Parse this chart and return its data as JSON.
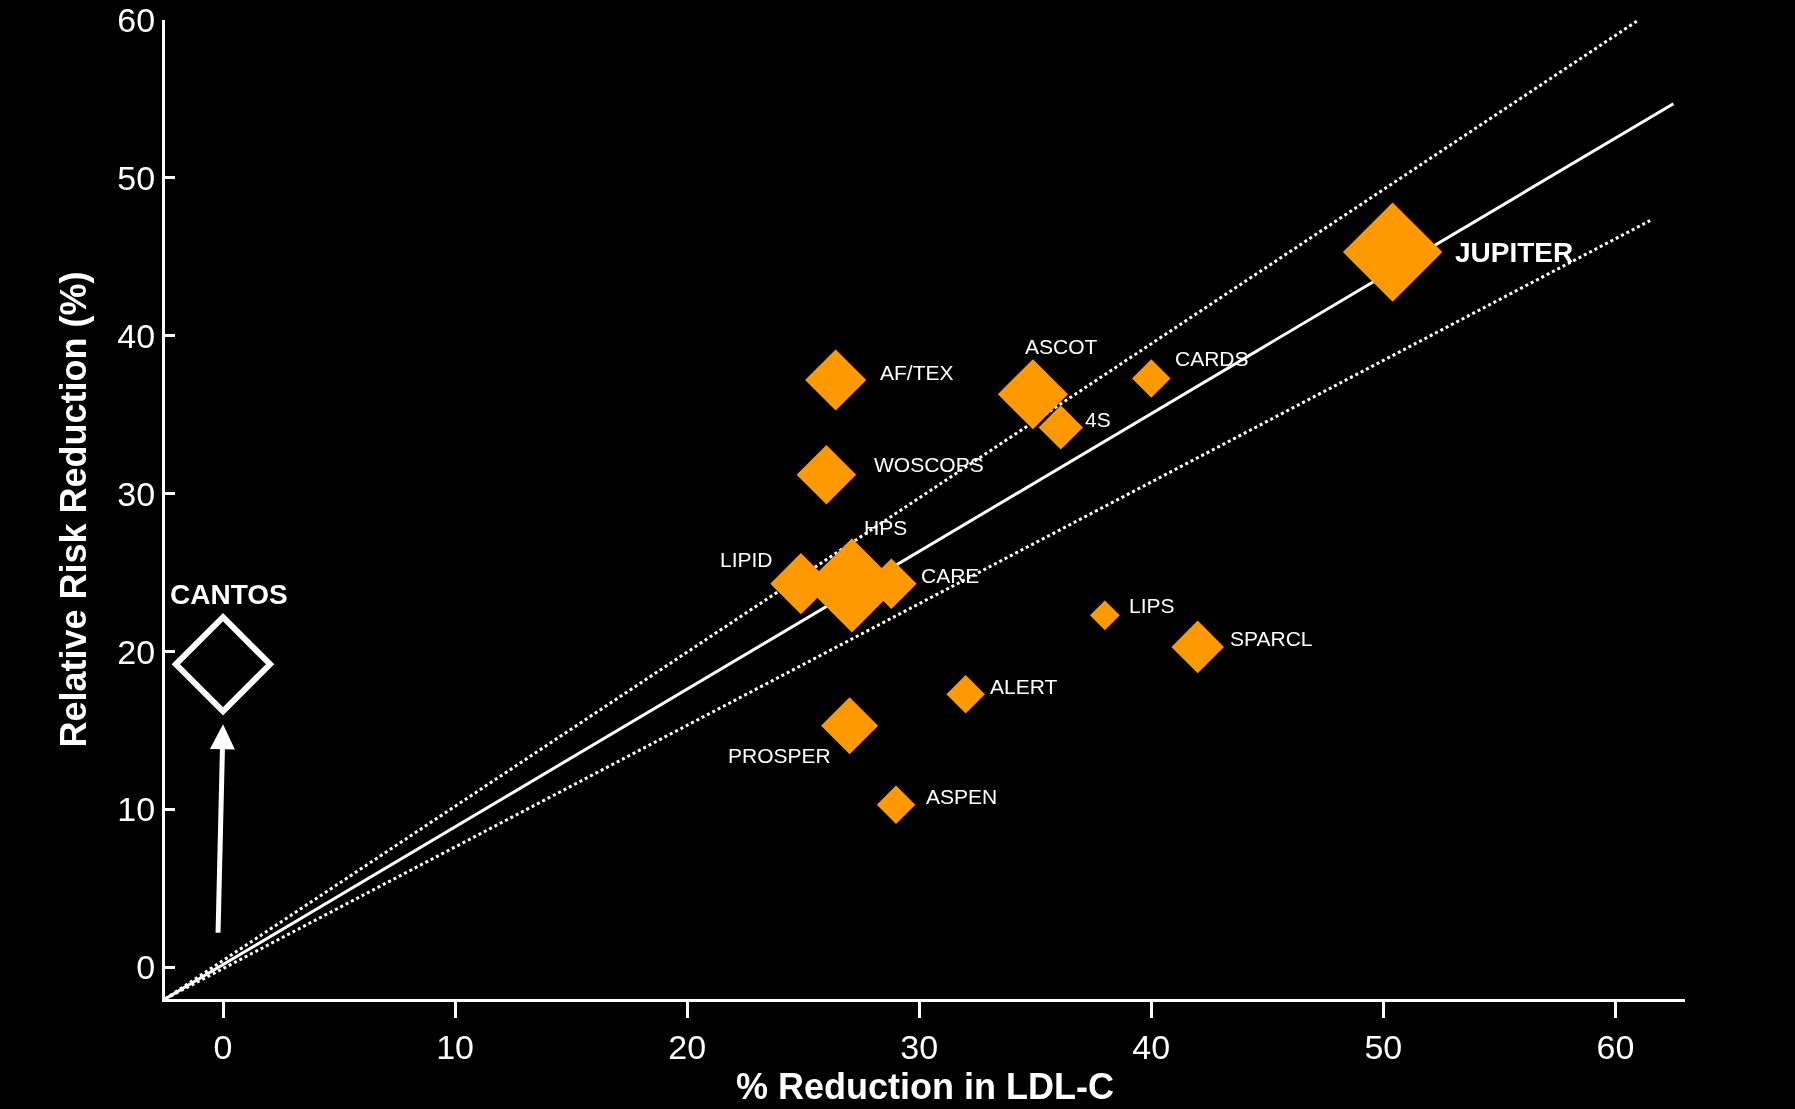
{
  "chart_data": {
    "type": "bubble",
    "xlabel": "% Reduction in LDL-C",
    "ylabel": "Relative Risk Reduction (%)",
    "xlim": [
      -2.5,
      63
    ],
    "xticks": [
      0,
      10,
      20,
      30,
      40,
      50,
      60
    ],
    "ylim": [
      -2,
      60
    ],
    "yticks": [
      0,
      10,
      20,
      30,
      40,
      50,
      60
    ],
    "series": [
      {
        "type": "bubble",
        "color": "#ff9900",
        "marker": "diamond",
        "x": [
          26.4,
          34.9,
          36.1,
          40.0,
          26.0,
          27.1,
          24.9,
          28.8,
          38.0,
          42.0,
          32.0,
          27.0,
          29.0,
          50.4
        ],
        "values": [
          37.2,
          36.3,
          34.2,
          37.3,
          31.2,
          24.2,
          24.3,
          24.3,
          22.3,
          20.3,
          17.3,
          15.3,
          10.3,
          45.3
        ],
        "sizes": [
          0.38,
          0.5,
          0.2,
          0.15,
          0.36,
          0.9,
          0.38,
          0.26,
          0.09,
          0.28,
          0.15,
          0.33,
          0.15,
          1
        ]
      },
      {
        "type": "bubble",
        "color": "#ffffff",
        "marker": "diamond-open",
        "x": [
          0
        ],
        "values": [
          19.2
        ],
        "sizes": [
          0.9
        ]
      },
      {
        "type": "line",
        "color": "#ffffff",
        "line_style": "solid",
        "x": [
          -2.5,
          62.5
        ],
        "values": [
          -2,
          54.7
        ]
      },
      {
        "type": "line",
        "color": "#ffffff",
        "line_style": "dotted",
        "x": [
          -2.5,
          61
        ],
        "values": [
          -2,
          60
        ]
      },
      {
        "type": "line",
        "color": "#ffffff",
        "line_style": "dotted",
        "x": [
          -2.5,
          61.5
        ],
        "values": [
          -2,
          47.3
        ]
      }
    ],
    "annotations": [
      {
        "text": "AF/TEX",
        "x": 26.4,
        "y": 37.2
      },
      {
        "text": "ASCOT",
        "x": 34.9,
        "y": 36.3
      },
      {
        "text": "4S",
        "x": 36.1,
        "y": 34.2
      },
      {
        "text": "CARDS",
        "x": 40.0,
        "y": 37.3
      },
      {
        "text": "WOSCOPS",
        "x": 26.0,
        "y": 31.2
      },
      {
        "text": "HPS",
        "x": 27.1,
        "y": 24.2
      },
      {
        "text": "LIPID",
        "x": 24.9,
        "y": 24.3
      },
      {
        "text": "CARE",
        "x": 28.8,
        "y": 24.3
      },
      {
        "text": "LIPS",
        "x": 38.0,
        "y": 22.3
      },
      {
        "text": "SPARCL",
        "x": 42.0,
        "y": 20.3
      },
      {
        "text": "ALERT",
        "x": 32.0,
        "y": 17.3
      },
      {
        "text": "PROSPER",
        "x": 27.0,
        "y": 15.3
      },
      {
        "text": "ASPEN",
        "x": 29.0,
        "y": 10.3
      },
      {
        "text": "JUPITER",
        "x": 50.4,
        "y": 45.3
      },
      {
        "text": "CANTOS",
        "x": 0,
        "y": 19.2
      }
    ]
  }
}
